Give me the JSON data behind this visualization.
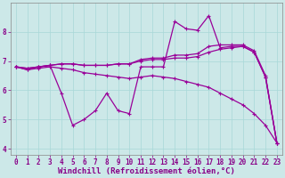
{
  "xlabel": "Windchill (Refroidissement éolien,°C)",
  "background_color": "#cce8e8",
  "line_color": "#990099",
  "line1_x": [
    0,
    1,
    2,
    3,
    4,
    5,
    6,
    7,
    8,
    9,
    10,
    11,
    12,
    13,
    14,
    15,
    16,
    17,
    18,
    19,
    20,
    21,
    22,
    23
  ],
  "line1_y": [
    6.8,
    6.7,
    6.8,
    6.85,
    5.9,
    4.8,
    5.0,
    5.3,
    5.9,
    5.3,
    5.2,
    6.8,
    6.8,
    6.8,
    8.35,
    8.1,
    8.05,
    8.55,
    7.45,
    7.5,
    7.5,
    7.3,
    6.45,
    4.2
  ],
  "line2_x": [
    0,
    1,
    2,
    3,
    4,
    5,
    6,
    7,
    8,
    9,
    10,
    11,
    12,
    13,
    14,
    15,
    16,
    17,
    18,
    19,
    20,
    21,
    22,
    23
  ],
  "line2_y": [
    6.8,
    6.7,
    6.75,
    6.8,
    6.75,
    6.7,
    6.6,
    6.55,
    6.5,
    6.45,
    6.4,
    6.45,
    6.5,
    6.45,
    6.4,
    6.3,
    6.2,
    6.1,
    5.9,
    5.7,
    5.5,
    5.2,
    4.8,
    4.2
  ],
  "line3_x": [
    0,
    1,
    2,
    3,
    4,
    5,
    6,
    7,
    8,
    9,
    10,
    11,
    12,
    13,
    14,
    15,
    16,
    17,
    18,
    19,
    20,
    21,
    22,
    23
  ],
  "line3_y": [
    6.8,
    6.75,
    6.8,
    6.85,
    6.9,
    6.9,
    6.85,
    6.85,
    6.85,
    6.9,
    6.9,
    7.0,
    7.05,
    7.05,
    7.1,
    7.1,
    7.15,
    7.3,
    7.4,
    7.45,
    7.5,
    7.3,
    6.45,
    4.2
  ],
  "line4_x": [
    0,
    1,
    2,
    3,
    4,
    5,
    6,
    7,
    8,
    9,
    10,
    11,
    12,
    13,
    14,
    15,
    16,
    17,
    18,
    19,
    20,
    21,
    22,
    23
  ],
  "line4_y": [
    6.8,
    6.75,
    6.8,
    6.85,
    6.9,
    6.9,
    6.85,
    6.85,
    6.85,
    6.9,
    6.9,
    7.05,
    7.1,
    7.1,
    7.2,
    7.2,
    7.25,
    7.5,
    7.55,
    7.55,
    7.55,
    7.35,
    6.5,
    4.2
  ],
  "ylim": [
    3.8,
    9.0
  ],
  "xlim": [
    -0.5,
    23.5
  ],
  "yticks": [
    4,
    5,
    6,
    7,
    8
  ],
  "xticks": [
    0,
    1,
    2,
    3,
    4,
    5,
    6,
    7,
    8,
    9,
    10,
    11,
    12,
    13,
    14,
    15,
    16,
    17,
    18,
    19,
    20,
    21,
    22,
    23
  ],
  "grid_color": "#a8d8d8",
  "tick_fontsize": 5.5,
  "xlabel_fontsize": 6.5
}
